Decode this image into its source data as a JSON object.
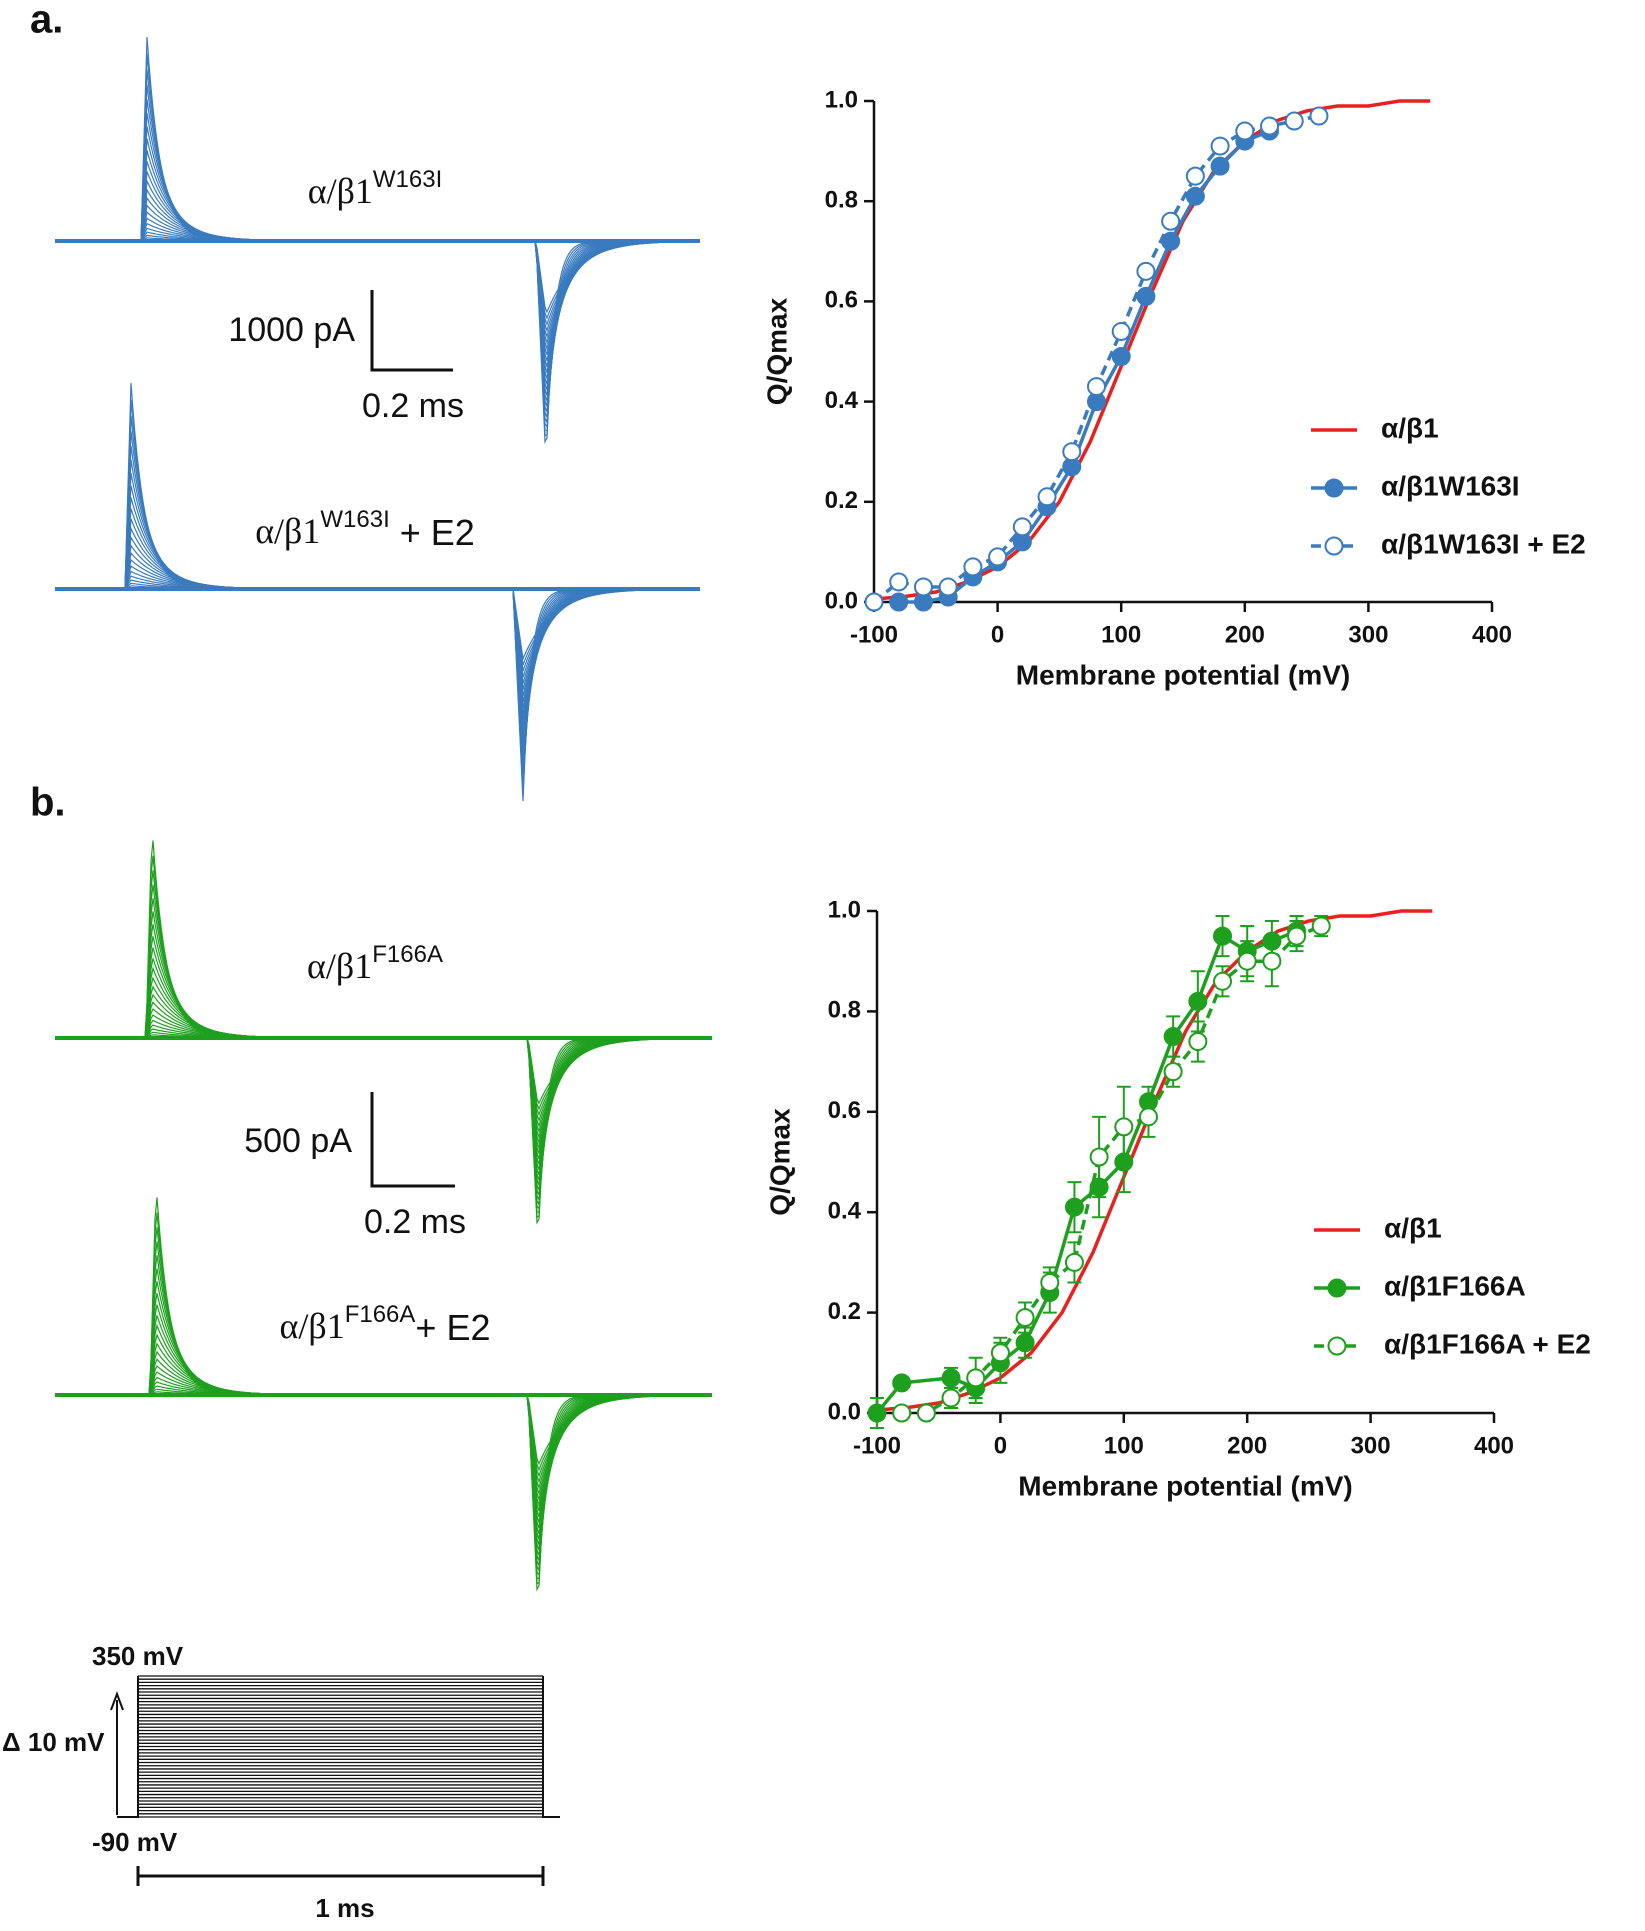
{
  "panel_labels": [
    "a.",
    "b."
  ],
  "traces": {
    "a": {
      "top": {
        "base": "α/β1",
        "sup": "W163I",
        "suffix": ""
      },
      "bottom": {
        "base": "α/β1",
        "sup": "W163I",
        "suffix": " + E2"
      },
      "scale_current": "1000 pA",
      "scale_time": "0.2 ms"
    },
    "b": {
      "top": {
        "base": "α/β1",
        "sup": "F166A",
        "suffix": ""
      },
      "bottom": {
        "base": "α/β1",
        "sup": "F166A",
        "suffix": "+ E2"
      },
      "scale_current": "500 pA",
      "scale_time": "0.2 ms"
    }
  },
  "protocol": {
    "top": "350 mV",
    "step": "Δ 10 mV",
    "bottom": "-90 mV",
    "duration": "1 ms"
  },
  "chart_data": [
    {
      "type": "line",
      "xlabel": "Membrane potential (mV)",
      "ylabel": "Q/Qmax",
      "xlim": [
        -100,
        400
      ],
      "ylim": [
        0,
        1
      ],
      "xticks": [
        -100,
        0,
        100,
        200,
        300,
        400
      ],
      "yticks": [
        {
          "value": 0,
          "label": "0.0"
        },
        {
          "value": 0.2,
          "label": "0.2"
        },
        {
          "value": 0.4,
          "label": "0.4"
        },
        {
          "value": 0.6,
          "label": "0.6"
        },
        {
          "value": 0.8,
          "label": "0.8"
        },
        {
          "value": 1,
          "label": "1.0"
        }
      ],
      "legend": "right",
      "series": [
        {
          "name": "α/β1",
          "color": "#e8201e",
          "linestyle": "solid",
          "x": [
            -100,
            -75,
            -50,
            -25,
            0,
            25,
            50,
            75,
            100,
            125,
            150,
            175,
            200,
            225,
            250,
            275,
            300,
            325,
            350
          ],
          "values": [
            0.006,
            0.011,
            0.02,
            0.04,
            0.07,
            0.12,
            0.2,
            0.32,
            0.47,
            0.62,
            0.76,
            0.86,
            0.92,
            0.96,
            0.98,
            0.99,
            0.99,
            1.0,
            1.0
          ]
        },
        {
          "name": "α/β1W163I",
          "color": "#3a7bbf",
          "marker": "filled",
          "linestyle": "solid",
          "x": [
            -80,
            -60,
            -40,
            -20,
            0,
            20,
            40,
            60,
            80,
            100,
            120,
            140,
            160,
            180,
            200,
            220
          ],
          "values": [
            0.0,
            0.0,
            0.01,
            0.05,
            0.08,
            0.12,
            0.19,
            0.27,
            0.4,
            0.49,
            0.61,
            0.72,
            0.81,
            0.87,
            0.92,
            0.94
          ]
        },
        {
          "name": "α/β1W163I + E2",
          "color": "#3a7bbf",
          "marker": "open",
          "linestyle": "dashed",
          "x": [
            -100,
            -80,
            -60,
            -40,
            -20,
            0,
            20,
            40,
            60,
            80,
            100,
            120,
            140,
            160,
            180,
            200,
            220,
            240,
            260
          ],
          "values": [
            0.0,
            0.04,
            0.03,
            0.03,
            0.07,
            0.09,
            0.15,
            0.21,
            0.3,
            0.43,
            0.54,
            0.66,
            0.76,
            0.85,
            0.91,
            0.94,
            0.95,
            0.96,
            0.97
          ]
        }
      ]
    },
    {
      "type": "line",
      "xlabel": "Membrane potential (mV)",
      "ylabel": "Q/Qmax",
      "xlim": [
        -100,
        400
      ],
      "ylim": [
        0,
        1
      ],
      "xticks": [
        -100,
        0,
        100,
        200,
        300,
        400
      ],
      "yticks": [
        {
          "value": 0,
          "label": "0.0"
        },
        {
          "value": 0.2,
          "label": "0.2"
        },
        {
          "value": 0.4,
          "label": "0.4"
        },
        {
          "value": 0.6,
          "label": "0.6"
        },
        {
          "value": 0.8,
          "label": "0.8"
        },
        {
          "value": 1,
          "label": "1.0"
        }
      ],
      "legend": "right",
      "series": [
        {
          "name": "α/β1",
          "color": "#e8201e",
          "linestyle": "solid",
          "x": [
            -100,
            -75,
            -50,
            -25,
            0,
            25,
            50,
            75,
            100,
            125,
            150,
            175,
            200,
            225,
            250,
            275,
            300,
            325,
            350
          ],
          "values": [
            0.006,
            0.011,
            0.02,
            0.04,
            0.07,
            0.12,
            0.2,
            0.32,
            0.47,
            0.62,
            0.76,
            0.86,
            0.92,
            0.96,
            0.98,
            0.99,
            0.99,
            1.0,
            1.0
          ]
        },
        {
          "name": "α/β1F166A",
          "color": "#1ea01e",
          "marker": "filled",
          "linestyle": "solid",
          "x": [
            -100,
            -80,
            -40,
            -20,
            0,
            20,
            40,
            60,
            80,
            100,
            120,
            140,
            160,
            180,
            200,
            220,
            240
          ],
          "values": [
            0.0,
            0.06,
            0.07,
            0.05,
            0.1,
            0.14,
            0.24,
            0.41,
            0.45,
            0.5,
            0.62,
            0.75,
            0.82,
            0.95,
            0.92,
            0.94,
            0.96
          ],
          "errors": [
            0.03,
            0.01,
            0.02,
            0.03,
            0.04,
            0.03,
            0.04,
            0.05,
            0.06,
            0.06,
            0.03,
            0.04,
            0.06,
            0.04,
            0.05,
            0.04,
            0.03
          ]
        },
        {
          "name": "α/β1F166A + E2",
          "color": "#1ea01e",
          "marker": "open",
          "linestyle": "dashed",
          "x": [
            -80,
            -60,
            -40,
            -20,
            0,
            20,
            40,
            60,
            80,
            100,
            120,
            140,
            160,
            180,
            200,
            220,
            240,
            260
          ],
          "values": [
            0.0,
            0.0,
            0.03,
            0.07,
            0.12,
            0.19,
            0.26,
            0.3,
            0.51,
            0.57,
            0.59,
            0.68,
            0.74,
            0.86,
            0.9,
            0.9,
            0.95,
            0.97
          ],
          "errors": [
            0.01,
            0.01,
            0.02,
            0.04,
            0.03,
            0.03,
            0.03,
            0.04,
            0.08,
            0.08,
            0.04,
            0.03,
            0.04,
            0.03,
            0.04,
            0.05,
            0.03,
            0.02
          ]
        }
      ]
    }
  ]
}
